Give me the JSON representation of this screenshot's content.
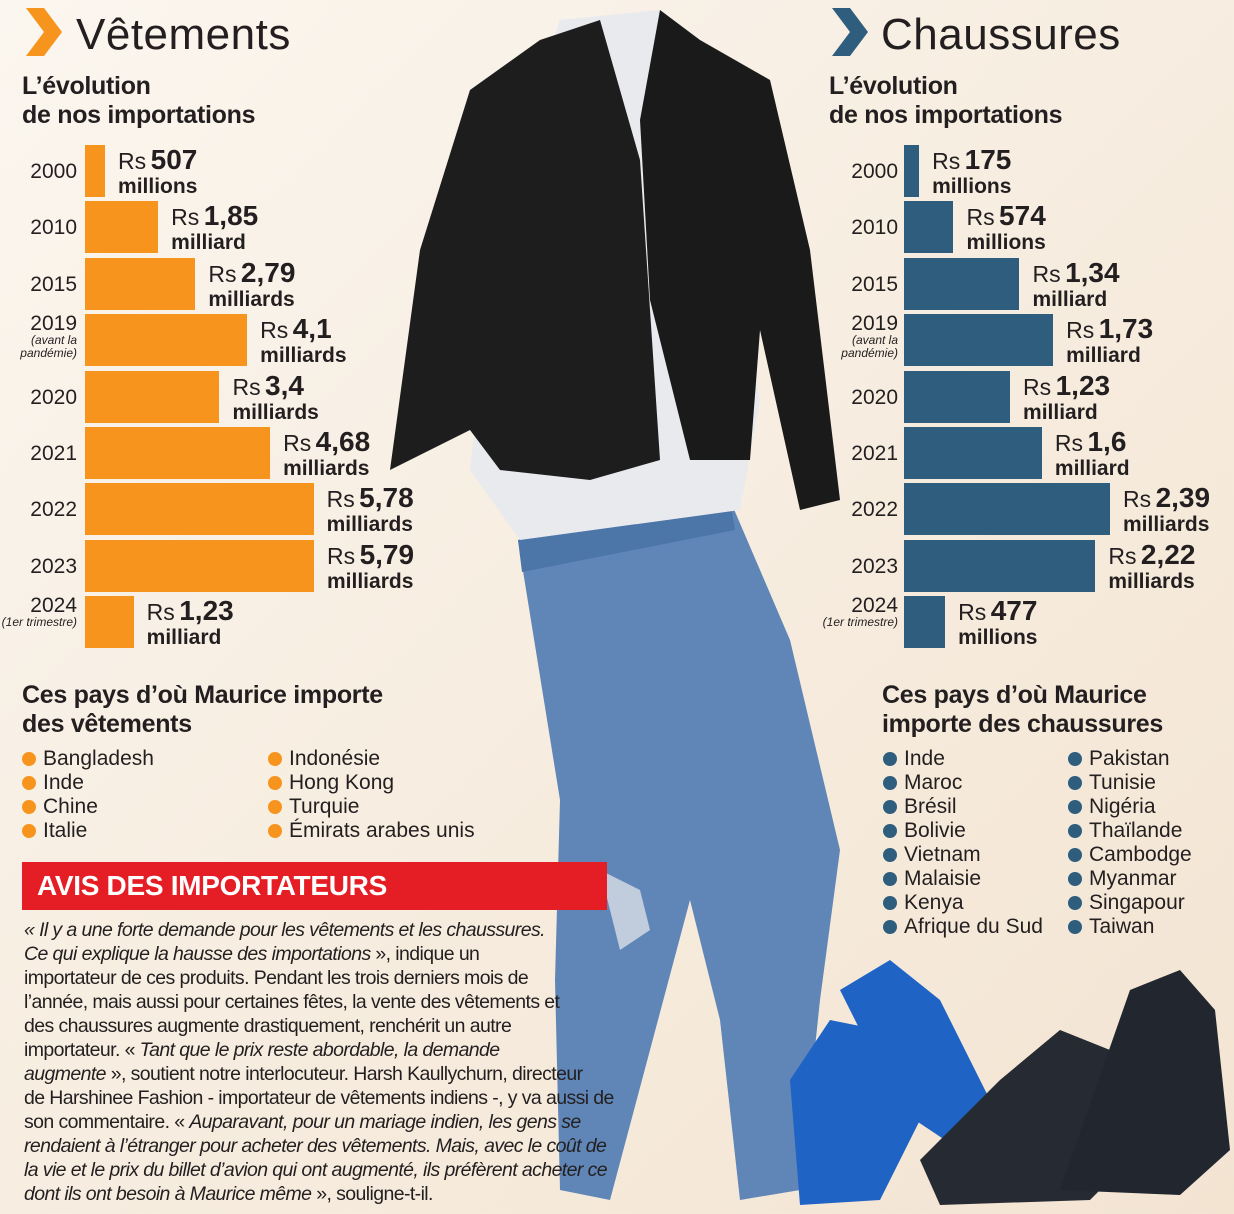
{
  "colors": {
    "vetements": "#f7941d",
    "chaussures": "#2e5d7e",
    "banner": "#e51d24"
  },
  "vetements": {
    "title": "Vêtements",
    "subtitle": [
      "L’évolution",
      "de nos importations"
    ],
    "countries_title": [
      "Ces pays d’où Maurice importe",
      "des vêtements"
    ],
    "countries": [
      [
        "Bangladesh",
        "Inde",
        "Chine",
        "Italie"
      ],
      [
        "Indonésie",
        "Hong Kong",
        "Turquie",
        "Émirats arabes unis"
      ]
    ]
  },
  "chaussures": {
    "title": "Chaussures",
    "subtitle": [
      "L’évolution",
      "de nos importations"
    ],
    "countries_title": [
      "Ces pays d’où Maurice",
      "importe des chaussures"
    ],
    "countries": [
      [
        "Inde",
        "Maroc",
        "Brésil",
        "Bolivie",
        "Vietnam",
        "Malaisie",
        "Kenya",
        "Afrique du Sud"
      ],
      [
        "Pakistan",
        "Tunisie",
        "Nigéria",
        "Thaïlande",
        "Cambodge",
        "Myanmar",
        "Singapour",
        "Taiwan"
      ]
    ]
  },
  "chart_data": [
    {
      "type": "bar",
      "orientation": "horizontal",
      "title": "L’évolution de nos importations",
      "subject": "Vêtements",
      "unit": "Rs (millions)",
      "categories": [
        "2000",
        "2010",
        "2015",
        "2019",
        "2020",
        "2021",
        "2022",
        "2023",
        "2024"
      ],
      "category_notes": [
        "",
        "",
        "",
        "(avant la pandémie)",
        "",
        "",
        "",
        "",
        "(1er trimestre)"
      ],
      "values": [
        507,
        1850,
        2790,
        4100,
        3400,
        4680,
        5780,
        5790,
        1230
      ],
      "labels": [
        [
          "Rs",
          "507",
          "millions"
        ],
        [
          "Rs",
          "1,85",
          "milliard"
        ],
        [
          "Rs",
          "2,79",
          "milliards"
        ],
        [
          "Rs",
          "4,1",
          "milliards"
        ],
        [
          "Rs",
          "3,4",
          "milliards"
        ],
        [
          "Rs",
          "4,68",
          "milliards"
        ],
        [
          "Rs",
          "5,78",
          "milliards"
        ],
        [
          "Rs",
          "5,79",
          "milliards"
        ],
        [
          "Rs",
          "1,23",
          "milliard"
        ]
      ],
      "color": "#f7941d"
    },
    {
      "type": "bar",
      "orientation": "horizontal",
      "title": "L’évolution de nos importations",
      "subject": "Chaussures",
      "unit": "Rs (millions)",
      "categories": [
        "2000",
        "2010",
        "2015",
        "2019",
        "2020",
        "2021",
        "2022",
        "2023",
        "2024"
      ],
      "category_notes": [
        "",
        "",
        "",
        "(avant la pandémie)",
        "",
        "",
        "",
        "",
        "(1er trimestre)"
      ],
      "values": [
        175,
        574,
        1340,
        1730,
        1230,
        1600,
        2390,
        2220,
        477
      ],
      "labels": [
        [
          "Rs",
          "175",
          "millions"
        ],
        [
          "Rs",
          "574",
          "millions"
        ],
        [
          "Rs",
          "1,34",
          "milliard"
        ],
        [
          "Rs",
          "1,73",
          "milliard"
        ],
        [
          "Rs",
          "1,23",
          "milliard"
        ],
        [
          "Rs",
          "1,6",
          "milliard"
        ],
        [
          "Rs",
          "2,39",
          "milliards"
        ],
        [
          "Rs",
          "2,22",
          "milliards"
        ],
        [
          "Rs",
          "477",
          "millions"
        ]
      ],
      "color": "#2e5d7e"
    }
  ],
  "avis": {
    "title": "AVIS DES IMPORTATEURS",
    "lines": [
      [
        [
          "« Il y a une forte demande pour les vêtements et les chaussures.",
          true
        ]
      ],
      [
        [
          "Ce qui explique la hausse des importations",
          true
        ],
        [
          " », indique un",
          false
        ]
      ],
      [
        [
          "importateur de ces produits. Pendant les trois derniers mois de",
          false
        ]
      ],
      [
        [
          "l’année, mais aussi pour certaines fêtes, la vente des vêtements et",
          false
        ]
      ],
      [
        [
          "des chaussures augmente drastiquement, renchérit un autre",
          false
        ]
      ],
      [
        [
          "importateur. « ",
          false
        ],
        [
          "Tant que le prix reste abordable, la demande",
          true
        ]
      ],
      [
        [
          "augmente",
          true
        ],
        [
          " », soutient notre interlocuteur. Harsh Kaullychurn, directeur",
          false
        ]
      ],
      [
        [
          "de Harshinee Fashion - importateur de vêtements indiens -, y va aussi de",
          false
        ]
      ],
      [
        [
          "son commentaire. « ",
          false
        ],
        [
          "Auparavant, pour un mariage indien, les gens se",
          true
        ]
      ],
      [
        [
          "rendaient à l’étranger pour acheter des vêtements. Mais, avec le coût de",
          true
        ]
      ],
      [
        [
          "la vie et le prix du billet d’avion qui ont augmenté, ils préfèrent acheter ce",
          true
        ]
      ],
      [
        [
          "dont ils ont besoin à Maurice même",
          true
        ],
        [
          " », souligne-t-il.",
          false
        ]
      ]
    ]
  }
}
